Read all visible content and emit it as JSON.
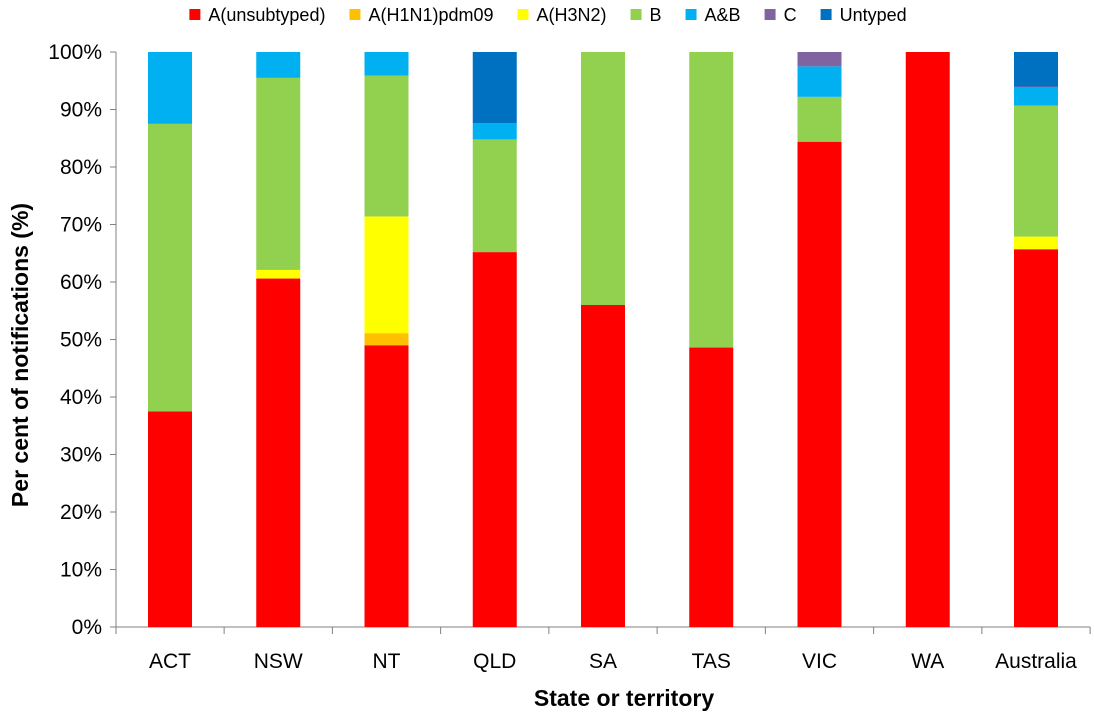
{
  "chart_data": {
    "type": "bar",
    "stacked": true,
    "normalized_percent": true,
    "title": "",
    "xlabel": "State or territory",
    "ylabel": "Per cent of notifications (%)",
    "ylim": [
      0,
      100
    ],
    "y_ticks": [
      "0%",
      "10%",
      "20%",
      "30%",
      "40%",
      "50%",
      "60%",
      "70%",
      "80%",
      "90%",
      "100%"
    ],
    "grid": false,
    "legend_position": "top",
    "categories": [
      "ACT",
      "NSW",
      "NT",
      "QLD",
      "SA",
      "TAS",
      "VIC",
      "WA",
      "Australia"
    ],
    "series": [
      {
        "name": "A(unsubtyped)",
        "color": "#FF0000",
        "values": [
          37.5,
          60.6,
          49.0,
          65.2,
          56.0,
          48.6,
          84.4,
          100.0,
          65.7
        ]
      },
      {
        "name": "A(H1N1)pdm09",
        "color": "#FFC000",
        "values": [
          0.0,
          0.0,
          2.1,
          0.0,
          0.0,
          0.0,
          0.0,
          0.0,
          0.0
        ]
      },
      {
        "name": "A(H3N2)",
        "color": "#FFFF00",
        "values": [
          0.0,
          1.5,
          20.3,
          0.0,
          0.0,
          0.0,
          0.0,
          0.0,
          2.2
        ]
      },
      {
        "name": "B",
        "color": "#92D050",
        "values": [
          50.0,
          33.4,
          24.5,
          19.6,
          44.0,
          51.4,
          7.8,
          0.0,
          22.8
        ]
      },
      {
        "name": "A&B",
        "color": "#00B0F0",
        "values": [
          12.5,
          4.5,
          4.1,
          2.8,
          0.0,
          0.0,
          5.3,
          0.0,
          3.1
        ]
      },
      {
        "name": "C",
        "color": "#8064A2",
        "values": [
          0.0,
          0.0,
          0.0,
          0.0,
          0.0,
          0.0,
          2.5,
          0.0,
          0.2
        ]
      },
      {
        "name": "Untyped",
        "color": "#0070C0",
        "values": [
          0.0,
          0.0,
          0.0,
          12.4,
          0.0,
          0.0,
          0.0,
          0.0,
          6.0
        ]
      }
    ]
  }
}
